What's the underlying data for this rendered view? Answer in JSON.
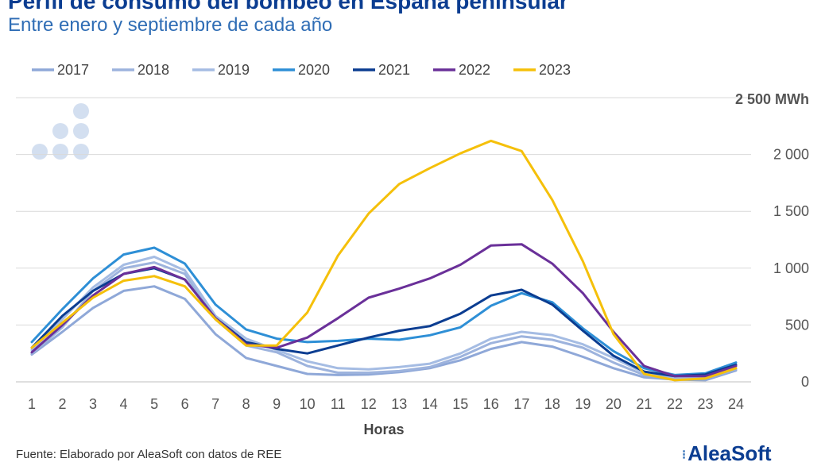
{
  "title": "Perfil de consumo del bombeo en España peninsular",
  "subtitle": "Entre enero y septiembre de cada año",
  "source": "Fuente: Elaborado por AleaSoft con datos de REE",
  "logo_text": "AleaSoft",
  "chart_data": {
    "type": "line",
    "title": "Perfil de consumo del bombeo en España peninsular",
    "subtitle": "Entre enero y septiembre de cada año",
    "xlabel": "Horas",
    "ylabel": "",
    "y_unit_label": "2 500 MWh",
    "ylim": [
      0,
      2500
    ],
    "yticks": [
      0,
      500,
      1000,
      1500,
      2000
    ],
    "ytick_labels": [
      "0",
      "500",
      "1 000",
      "1 500",
      "2 000"
    ],
    "grid": true,
    "legend_position": "top",
    "x": [
      1,
      2,
      3,
      4,
      5,
      6,
      7,
      8,
      9,
      10,
      11,
      12,
      13,
      14,
      15,
      16,
      17,
      18,
      19,
      20,
      21,
      22,
      23,
      24
    ],
    "x_labels": [
      "1",
      "2",
      "3",
      "4",
      "5",
      "6",
      "7",
      "8",
      "9",
      "10",
      "11",
      "12",
      "13",
      "14",
      "15",
      "16",
      "17",
      "18",
      "19",
      "20",
      "21",
      "22",
      "23",
      "24"
    ],
    "series": [
      {
        "name": "2017",
        "color": "#8fa8d8",
        "values": [
          240,
          440,
          650,
          800,
          840,
          730,
          420,
          210,
          140,
          70,
          60,
          65,
          85,
          120,
          190,
          290,
          350,
          310,
          220,
          120,
          40,
          20,
          15,
          100
        ]
      },
      {
        "name": "2018",
        "color": "#9db3dd",
        "values": [
          250,
          480,
          800,
          1000,
          1050,
          950,
          550,
          320,
          260,
          140,
          80,
          80,
          95,
          130,
          220,
          340,
          400,
          370,
          300,
          170,
          60,
          25,
          30,
          110
        ]
      },
      {
        "name": "2019",
        "color": "#a5bce3",
        "values": [
          280,
          550,
          830,
          1030,
          1100,
          980,
          580,
          380,
          280,
          180,
          120,
          110,
          130,
          160,
          250,
          380,
          440,
          410,
          330,
          210,
          80,
          40,
          45,
          120
        ]
      },
      {
        "name": "2020",
        "color": "#2e8fd6",
        "values": [
          350,
          640,
          910,
          1120,
          1180,
          1040,
          680,
          460,
          380,
          350,
          360,
          380,
          370,
          410,
          480,
          670,
          780,
          700,
          470,
          270,
          120,
          60,
          75,
          170
        ]
      },
      {
        "name": "2021",
        "color": "#0b3d91",
        "values": [
          300,
          580,
          800,
          950,
          1000,
          900,
          560,
          350,
          290,
          250,
          320,
          390,
          450,
          490,
          600,
          760,
          810,
          680,
          450,
          230,
          90,
          50,
          65,
          150
        ]
      },
      {
        "name": "2022",
        "color": "#6a3099",
        "values": [
          260,
          500,
          760,
          950,
          1010,
          900,
          560,
          330,
          300,
          390,
          560,
          740,
          820,
          910,
          1030,
          1200,
          1210,
          1040,
          780,
          440,
          140,
          50,
          50,
          140
        ]
      },
      {
        "name": "2023",
        "color": "#f5c00a",
        "values": [
          300,
          520,
          740,
          890,
          930,
          840,
          550,
          320,
          320,
          610,
          1110,
          1480,
          1740,
          1880,
          2010,
          2120,
          2030,
          1600,
          1060,
          420,
          70,
          15,
          30,
          120
        ]
      }
    ]
  }
}
